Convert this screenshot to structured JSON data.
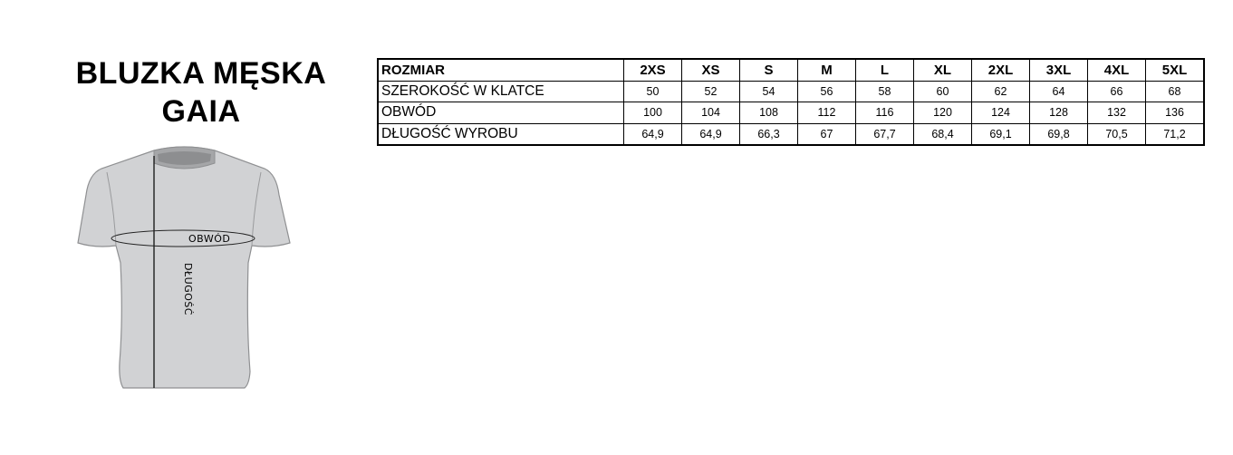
{
  "title_line1": "BLUZKA MĘSKA",
  "title_line2": "GAIA",
  "diagram": {
    "girth_label": "OBWÓD",
    "length_label": "DŁUGOŚĆ"
  },
  "table": {
    "header_label": "ROZMIAR",
    "sizes": [
      "2XS",
      "XS",
      "S",
      "M",
      "L",
      "XL",
      "2XL",
      "3XL",
      "4XL",
      "5XL"
    ],
    "rows": [
      {
        "label": "SZEROKOŚĆ W KLATCE",
        "values": [
          "50",
          "52",
          "54",
          "56",
          "58",
          "60",
          "62",
          "64",
          "66",
          "68"
        ]
      },
      {
        "label": "OBWÓD",
        "values": [
          "100",
          "104",
          "108",
          "112",
          "116",
          "120",
          "124",
          "128",
          "132",
          "136"
        ]
      },
      {
        "label": "DŁUGOŚĆ WYROBU",
        "values": [
          "64,9",
          "64,9",
          "66,3",
          "67",
          "67,7",
          "68,4",
          "69,1",
          "69,8",
          "70,5",
          "71,2"
        ]
      }
    ]
  }
}
